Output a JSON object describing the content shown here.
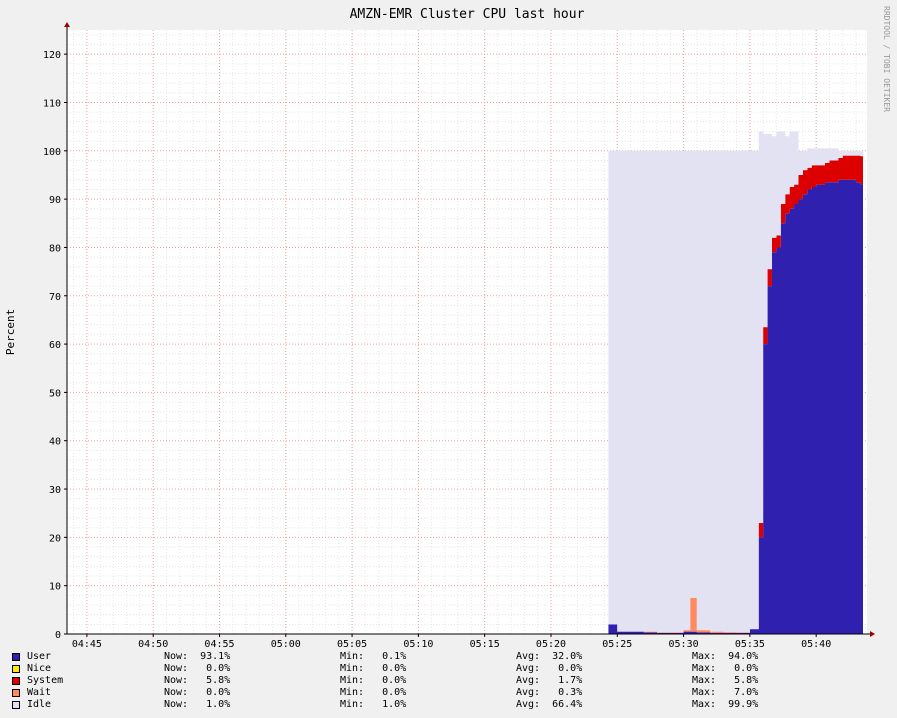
{
  "watermark": "RRDTOOL / TOBI OETIKER",
  "chart_data": {
    "type": "area",
    "title": "AMZN-EMR Cluster CPU last hour",
    "xlabel": "",
    "ylabel": "Percent",
    "ylim": [
      0,
      125
    ],
    "yticks": [
      0,
      10,
      20,
      30,
      40,
      50,
      60,
      70,
      80,
      90,
      100,
      110,
      120
    ],
    "xlim": [
      "04:43:30",
      "05:43:50"
    ],
    "xticks": [
      "04:45",
      "04:50",
      "04:55",
      "05:00",
      "05:05",
      "05:10",
      "05:15",
      "05:20",
      "05:25",
      "05:30",
      "05:35",
      "05:40"
    ],
    "grid": true,
    "stacked": true,
    "legend_position": "bottom",
    "x": [
      "05:24:20",
      "05:25:00",
      "05:26:00",
      "05:27:00",
      "05:28:00",
      "05:29:00",
      "05:30:00",
      "05:30:30",
      "05:31:00",
      "05:32:00",
      "05:33:00",
      "05:34:00",
      "05:35:00",
      "05:35:40",
      "05:36:00",
      "05:36:20",
      "05:36:40",
      "05:37:00",
      "05:37:20",
      "05:37:40",
      "05:38:00",
      "05:38:20",
      "05:38:40",
      "05:39:00",
      "05:39:20",
      "05:39:40",
      "05:40:00",
      "05:40:20",
      "05:40:40",
      "05:41:00",
      "05:41:20",
      "05:41:40",
      "05:42:00",
      "05:42:20",
      "05:42:40",
      "05:43:00",
      "05:43:20"
    ],
    "series": [
      {
        "name": "User",
        "color": "#3020b0",
        "values": [
          2,
          0.5,
          0.5,
          0.3,
          0.2,
          0.2,
          0.5,
          0.5,
          0.3,
          0.2,
          0.2,
          0.2,
          1,
          20,
          60,
          72,
          79,
          80,
          85,
          87,
          88,
          89,
          90,
          91,
          92,
          92.5,
          93,
          93,
          93.5,
          93.5,
          93.5,
          94,
          94,
          94,
          94,
          93.5,
          93.1
        ]
      },
      {
        "name": "Nice",
        "color": "#ffea00",
        "values": [
          0,
          0,
          0,
          0,
          0,
          0,
          0,
          0,
          0,
          0,
          0,
          0,
          0,
          0,
          0,
          0,
          0,
          0,
          0,
          0,
          0,
          0,
          0,
          0,
          0,
          0,
          0,
          0,
          0,
          0,
          0,
          0,
          0,
          0,
          0,
          0,
          0
        ]
      },
      {
        "name": "System",
        "color": "#dd0000",
        "values": [
          0,
          0,
          0,
          0,
          0,
          0,
          0,
          0,
          0,
          0,
          0,
          0,
          0,
          3,
          3.5,
          3.5,
          3,
          2.5,
          4,
          4,
          4.5,
          4,
          5,
          5,
          4.5,
          4.5,
          4,
          4,
          4,
          4.5,
          4.5,
          4.5,
          5,
          5,
          5,
          5.5,
          5.8
        ]
      },
      {
        "name": "Wait",
        "color": "#ff8a60",
        "values": [
          0,
          0,
          0,
          0.2,
          0.1,
          0.1,
          0.3,
          7,
          0.5,
          0.3,
          0.2,
          0.1,
          0,
          0,
          0,
          0,
          0,
          0,
          0,
          0,
          0,
          0,
          0,
          0,
          0,
          0,
          0,
          0,
          0,
          0,
          0,
          0,
          0,
          0,
          0,
          0,
          0
        ]
      },
      {
        "name": "Idle",
        "color": "#e2e2f2",
        "values": [
          98,
          99.5,
          99.5,
          99.5,
          99.7,
          99.7,
          99.2,
          92.5,
          99.2,
          99.5,
          99.6,
          99.7,
          99,
          81,
          40,
          28,
          21,
          21.5,
          15,
          12,
          11.5,
          11,
          5,
          4,
          4,
          3.5,
          3.5,
          3.5,
          3,
          2.5,
          2.5,
          1.5,
          1,
          1,
          1,
          1,
          1
        ]
      }
    ],
    "stats": [
      {
        "name": "User",
        "now": "93.1%",
        "min": "0.1%",
        "avg": "32.0%",
        "max": "94.0%"
      },
      {
        "name": "Nice",
        "now": "0.0%",
        "min": "0.0%",
        "avg": "0.0%",
        "max": "0.0%"
      },
      {
        "name": "System",
        "now": "5.8%",
        "min": "0.0%",
        "avg": "1.7%",
        "max": "5.8%"
      },
      {
        "name": "Wait",
        "now": "0.0%",
        "min": "0.0%",
        "avg": "0.3%",
        "max": "7.0%"
      },
      {
        "name": "Idle",
        "now": "1.0%",
        "min": "1.0%",
        "avg": "66.4%",
        "max": "99.9%"
      }
    ]
  }
}
